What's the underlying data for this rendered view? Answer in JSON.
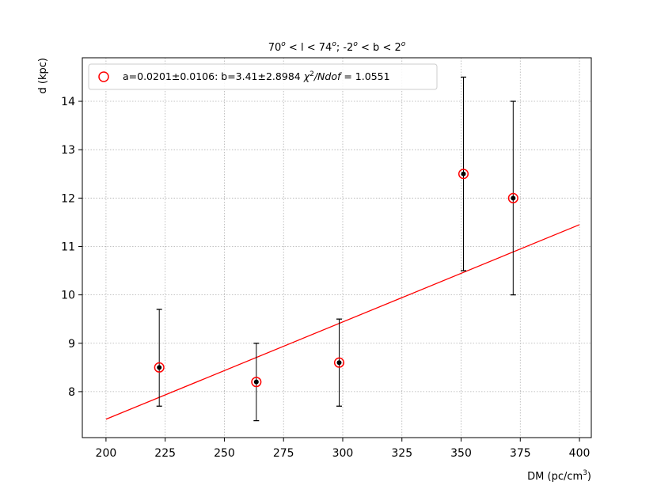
{
  "chart_data": {
    "type": "scatter",
    "title": {
      "l_low": "70",
      "l_var": "l",
      "l_high": "74",
      "b_low": "-2",
      "b_var": "b",
      "b_high": "2",
      "sup": "o",
      "lt": "<",
      "sep": ";"
    },
    "xlabel": {
      "main": "DM (pc/cm",
      "sup": "3",
      "close": ")"
    },
    "ylabel": "d (kpc)",
    "xlim": [
      190,
      405
    ],
    "ylim": [
      7.05,
      14.9
    ],
    "xticks": [
      200,
      225,
      250,
      275,
      300,
      325,
      350,
      375,
      400
    ],
    "yticks": [
      8,
      9,
      10,
      11,
      12,
      13,
      14
    ],
    "grid": true,
    "legend_position": "upper-left",
    "points": [
      {
        "x": 222.5,
        "y": 8.5,
        "err_low": 7.7,
        "err_high": 9.7
      },
      {
        "x": 263.5,
        "y": 8.2,
        "err_low": 7.4,
        "err_high": 9.0
      },
      {
        "x": 298.5,
        "y": 8.6,
        "err_low": 7.7,
        "err_high": 9.5
      },
      {
        "x": 351.0,
        "y": 12.5,
        "err_low": 10.5,
        "err_high": 14.5
      },
      {
        "x": 372.0,
        "y": 12.0,
        "err_low": 10.0,
        "err_high": 14.0
      }
    ],
    "fit": {
      "a": 0.0201,
      "b": 3.41,
      "x_start": 200,
      "x_end": 400
    },
    "legend": {
      "fit_text": "a=0.0201±0.0106: b=3.41±2.8984 ",
      "chi": "χ",
      "chi_sup": "2",
      "ndof": "/Ndof",
      "eq": " = 1.0551"
    },
    "colors": {
      "marker_edge": "#ff0000",
      "point": "#000000",
      "fit_line": "#ff0000",
      "grid": "#b0b0b0"
    }
  }
}
